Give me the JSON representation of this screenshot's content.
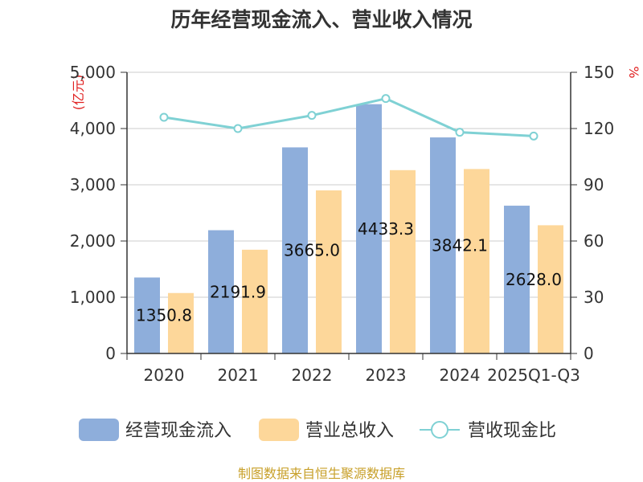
{
  "chart_data": {
    "type": "bar",
    "title": "历年经营现金流入、营业收入情况",
    "left_axis_unit": "(亿元)",
    "right_axis_unit": "%",
    "categories": [
      "2020",
      "2021",
      "2022",
      "2023",
      "2024",
      "2025Q1-Q3"
    ],
    "left_axis": {
      "min": 0,
      "max": 5000,
      "ticks": [
        "0",
        "1,000",
        "2,000",
        "3,000",
        "4,000",
        "5,000"
      ]
    },
    "right_axis": {
      "min": 0,
      "max": 150,
      "ticks": [
        "0",
        "30",
        "60",
        "90",
        "120",
        "150"
      ]
    },
    "series": [
      {
        "name": "经营现金流入",
        "type": "bar",
        "axis": "left",
        "color": "#8eaedb",
        "values": [
          1350.8,
          2191.9,
          3665.0,
          4433.3,
          3842.1,
          2628.0
        ]
      },
      {
        "name": "营业总收入",
        "type": "bar",
        "axis": "left",
        "color": "#fdd79a",
        "values": [
          1075,
          1845,
          2900,
          3260,
          3280,
          2280
        ]
      },
      {
        "name": "营收现金比",
        "type": "line",
        "axis": "right",
        "color": "#7fd1d4",
        "values": [
          126,
          120,
          127,
          136,
          118,
          116
        ]
      }
    ],
    "data_labels": [
      "1350.8",
      "2191.9",
      "3665.0",
      "4433.3",
      "3842.1",
      "2628.0"
    ],
    "grid": true,
    "legend_position": "bottom"
  },
  "source_text": "制图数据来自恒生聚源数据库"
}
